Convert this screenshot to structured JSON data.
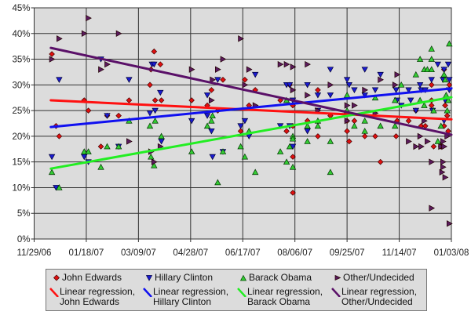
{
  "chart_data": {
    "type": "scatter",
    "title": "",
    "xlabel": "",
    "ylabel": "",
    "xlim": [
      "11/29/06",
      "01/03/08"
    ],
    "ylim": [
      0,
      45
    ],
    "x_ticks": [
      "11/29/06",
      "01/18/07",
      "03/09/07",
      "04/28/07",
      "06/17/07",
      "08/06/07",
      "09/25/07",
      "11/14/07",
      "01/03/08"
    ],
    "y_ticks": [
      "0%",
      "5%",
      "10%",
      "15%",
      "20%",
      "25%",
      "30%",
      "35%",
      "40%",
      "45%"
    ],
    "grid": true,
    "legend_position": "bottom",
    "series": [
      {
        "name": "John Edwards",
        "marker": "diamond",
        "color": "#e01010",
        "points": [
          [
            "12/16/06",
            36
          ],
          [
            "12/20/06",
            22
          ],
          [
            "12/23/06",
            20
          ],
          [
            "01/16/07",
            27
          ],
          [
            "01/20/07",
            25
          ],
          [
            "02/01/07",
            18
          ],
          [
            "02/07/07",
            24
          ],
          [
            "02/18/07",
            24
          ],
          [
            "02/28/07",
            27
          ],
          [
            "03/20/07",
            30
          ],
          [
            "03/21/07",
            33
          ],
          [
            "03/24/07",
            36.5
          ],
          [
            "03/25/07",
            27
          ],
          [
            "03/30/07",
            34
          ],
          [
            "03/31/07",
            27
          ],
          [
            "04/29/07",
            27
          ],
          [
            "05/14/07",
            26
          ],
          [
            "05/18/07",
            29
          ],
          [
            "05/24/07",
            25
          ],
          [
            "05/29/07",
            31
          ],
          [
            "06/15/07",
            21
          ],
          [
            "06/19/07",
            31
          ],
          [
            "06/23/07",
            26
          ],
          [
            "06/29/07",
            29
          ],
          [
            "07/23/07",
            27
          ],
          [
            "07/29/07",
            21
          ],
          [
            "08/01/07",
            30
          ],
          [
            "08/04/07",
            26
          ],
          [
            "08/04/07",
            22
          ],
          [
            "08/04/07",
            16
          ],
          [
            "08/04/07",
            9
          ],
          [
            "08/18/07",
            23
          ],
          [
            "08/28/07",
            29
          ],
          [
            "08/28/07",
            20
          ],
          [
            "09/09/07",
            24
          ],
          [
            "09/25/07",
            23
          ],
          [
            "09/25/07",
            21
          ],
          [
            "09/27/07",
            19
          ],
          [
            "10/02/07",
            23
          ],
          [
            "10/12/07",
            20
          ],
          [
            "10/22/07",
            20
          ],
          [
            "10/27/07",
            15
          ],
          [
            "11/11/07",
            20
          ],
          [
            "11/12/07",
            23
          ],
          [
            "11/23/07",
            23
          ],
          [
            "11/30/07",
            25
          ],
          [
            "12/05/07",
            22
          ],
          [
            "12/09/07",
            22
          ],
          [
            "12/15/07",
            27
          ],
          [
            "12/15/07",
            30
          ],
          [
            "12/15/07",
            26
          ],
          [
            "12/17/07",
            18
          ],
          [
            "12/24/07",
            18
          ],
          [
            "12/27/07",
            22
          ],
          [
            "12/28/07",
            26
          ],
          [
            "12/27/07",
            33
          ],
          [
            "01/01/08",
            30
          ],
          [
            "12/30/07",
            24
          ],
          [
            "12/31/07",
            21
          ]
        ]
      },
      {
        "name": "Hillary Clinton",
        "marker": "triangle-down",
        "color": "#1a1ad0",
        "points": [
          [
            "12/16/06",
            16
          ],
          [
            "12/20/06",
            10
          ],
          [
            "12/23/06",
            31
          ],
          [
            "01/16/07",
            16
          ],
          [
            "01/20/07",
            15
          ],
          [
            "02/01/07",
            35
          ],
          [
            "02/07/07",
            24
          ],
          [
            "02/18/07",
            18
          ],
          [
            "02/28/07",
            31
          ],
          [
            "03/20/07",
            24.5
          ],
          [
            "03/22/07",
            34
          ],
          [
            "03/24/07",
            34
          ],
          [
            "03/25/07",
            25
          ],
          [
            "03/30/07",
            28.5
          ],
          [
            "03/31/07",
            19
          ],
          [
            "04/29/07",
            23
          ],
          [
            "05/14/07",
            28
          ],
          [
            "05/14/07",
            24
          ],
          [
            "05/18/07",
            21
          ],
          [
            "05/19/07",
            16
          ],
          [
            "05/24/07",
            31
          ],
          [
            "05/29/07",
            17
          ],
          [
            "06/15/07",
            22
          ],
          [
            "06/19/07",
            23
          ],
          [
            "06/23/07",
            20
          ],
          [
            "06/29/07",
            32
          ],
          [
            "07/23/07",
            22
          ],
          [
            "07/29/07",
            30
          ],
          [
            "08/01/07",
            30
          ],
          [
            "08/01/07",
            22
          ],
          [
            "08/04/07",
            18
          ],
          [
            "08/04/07",
            27
          ],
          [
            "08/18/07",
            30
          ],
          [
            "08/18/07",
            21
          ],
          [
            "08/28/07",
            28
          ],
          [
            "08/28/07",
            25
          ],
          [
            "09/09/07",
            33
          ],
          [
            "09/09/07",
            28
          ],
          [
            "09/25/07",
            31
          ],
          [
            "09/27/07",
            30
          ],
          [
            "10/02/07",
            29
          ],
          [
            "10/12/07",
            33
          ],
          [
            "10/12/07",
            28
          ],
          [
            "10/22/07",
            29
          ],
          [
            "10/27/07",
            32
          ],
          [
            "11/11/07",
            29
          ],
          [
            "11/12/07",
            27
          ],
          [
            "11/16/07",
            26
          ],
          [
            "11/23/07",
            29
          ],
          [
            "11/25/07",
            27
          ],
          [
            "11/30/07",
            25
          ],
          [
            "12/04/07",
            30
          ],
          [
            "12/05/07",
            29
          ],
          [
            "12/09/07",
            29
          ],
          [
            "12/15/07",
            31
          ],
          [
            "12/16/07",
            25
          ],
          [
            "12/21/07",
            34
          ],
          [
            "12/26/07",
            31
          ],
          [
            "12/27/07",
            23
          ],
          [
            "12/27/07",
            33
          ],
          [
            "12/28/07",
            27
          ],
          [
            "12/31/07",
            34
          ],
          [
            "01/01/08",
            29
          ],
          [
            "01/01/08",
            31
          ]
        ]
      },
      {
        "name": "Barack Obama",
        "marker": "triangle-up",
        "color": "#33cc33",
        "points": [
          [
            "12/16/06",
            13
          ],
          [
            "12/23/06",
            10
          ],
          [
            "01/16/07",
            17
          ],
          [
            "01/20/07",
            17
          ],
          [
            "02/01/07",
            14
          ],
          [
            "02/07/07",
            18
          ],
          [
            "02/18/07",
            18
          ],
          [
            "02/28/07",
            23
          ],
          [
            "03/20/07",
            22
          ],
          [
            "03/21/07",
            16
          ],
          [
            "03/24/07",
            14.3
          ],
          [
            "03/25/07",
            23
          ],
          [
            "03/31/07",
            20
          ],
          [
            "04/29/07",
            17
          ],
          [
            "05/14/07",
            22
          ],
          [
            "05/18/07",
            23
          ],
          [
            "05/19/07",
            24
          ],
          [
            "05/24/07",
            11
          ],
          [
            "05/29/07",
            17
          ],
          [
            "06/15/07",
            18
          ],
          [
            "06/19/07",
            16
          ],
          [
            "06/23/07",
            21
          ],
          [
            "06/29/07",
            13
          ],
          [
            "07/23/07",
            17
          ],
          [
            "07/29/07",
            27
          ],
          [
            "07/29/07",
            15
          ],
          [
            "08/01/07",
            18
          ],
          [
            "08/04/07",
            20
          ],
          [
            "08/04/07",
            19.5
          ],
          [
            "08/04/07",
            14
          ],
          [
            "08/18/07",
            22
          ],
          [
            "08/18/07",
            19
          ],
          [
            "08/28/07",
            23
          ],
          [
            "08/28/07",
            22
          ],
          [
            "09/09/07",
            19
          ],
          [
            "09/09/07",
            13
          ],
          [
            "09/25/07",
            28
          ],
          [
            "09/25/07",
            25
          ],
          [
            "10/02/07",
            22
          ],
          [
            "10/12/07",
            23
          ],
          [
            "10/12/07",
            21
          ],
          [
            "10/22/07",
            27.5
          ],
          [
            "10/27/07",
            22
          ],
          [
            "11/10/07",
            27
          ],
          [
            "11/10/07",
            22
          ],
          [
            "11/16/07",
            30
          ],
          [
            "11/30/07",
            32
          ],
          [
            "12/04/07",
            27
          ],
          [
            "12/04/07",
            35
          ],
          [
            "12/08/07",
            26
          ],
          [
            "12/08/07",
            33
          ],
          [
            "12/11/07",
            33
          ],
          [
            "12/15/07",
            33
          ],
          [
            "12/15/07",
            37
          ],
          [
            "12/15/07",
            35
          ],
          [
            "12/17/07",
            25
          ],
          [
            "12/21/07",
            19
          ],
          [
            "12/24/07",
            22
          ],
          [
            "12/27/07",
            32
          ],
          [
            "12/28/07",
            31
          ],
          [
            "12/29/07",
            28
          ],
          [
            "12/30/07",
            25
          ],
          [
            "01/01/08",
            38
          ],
          [
            "12/31/07",
            27
          ]
        ]
      },
      {
        "name": "Other/Undecided",
        "marker": "triangle-right",
        "color": "#5a1a5e",
        "points": [
          [
            "12/16/06",
            35
          ],
          [
            "12/23/06",
            39
          ],
          [
            "01/16/07",
            40
          ],
          [
            "01/20/07",
            43
          ],
          [
            "02/01/07",
            33
          ],
          [
            "02/07/07",
            34
          ],
          [
            "02/18/07",
            40
          ],
          [
            "02/28/07",
            19
          ],
          [
            "03/21/07",
            17
          ],
          [
            "03/24/07",
            15
          ],
          [
            "03/30/07",
            18
          ],
          [
            "04/29/07",
            33
          ],
          [
            "05/18/07",
            27
          ],
          [
            "05/19/07",
            31
          ],
          [
            "05/24/07",
            33
          ],
          [
            "05/29/07",
            35
          ],
          [
            "06/15/07",
            39
          ],
          [
            "06/19/07",
            30
          ],
          [
            "06/23/07",
            33
          ],
          [
            "06/29/07",
            26
          ],
          [
            "07/23/07",
            34
          ],
          [
            "07/29/07",
            34
          ],
          [
            "08/04/07",
            33.5
          ],
          [
            "08/04/07",
            29
          ],
          [
            "08/18/07",
            34
          ],
          [
            "08/18/07",
            28
          ],
          [
            "08/28/07",
            25
          ],
          [
            "09/09/07",
            30
          ],
          [
            "09/25/07",
            26
          ],
          [
            "09/25/07",
            23
          ],
          [
            "10/02/07",
            26
          ],
          [
            "10/12/07",
            29
          ],
          [
            "10/22/07",
            24.5
          ],
          [
            "10/27/07",
            31
          ],
          [
            "11/10/07",
            30
          ],
          [
            "11/12/07",
            32
          ],
          [
            "11/23/07",
            19
          ],
          [
            "11/30/07",
            18
          ],
          [
            "12/04/07",
            20
          ],
          [
            "12/05/07",
            18
          ],
          [
            "12/08/07",
            23
          ],
          [
            "12/11/07",
            19
          ],
          [
            "12/15/07",
            15
          ],
          [
            "12/15/07",
            6
          ],
          [
            "12/24/07",
            18
          ],
          [
            "12/26/07",
            19
          ],
          [
            "12/27/07",
            18
          ],
          [
            "12/26/07",
            15
          ],
          [
            "12/26/07",
            14
          ],
          [
            "12/25/07",
            13
          ],
          [
            "12/28/07",
            12
          ],
          [
            "01/01/08",
            3
          ],
          [
            "12/30/07",
            20
          ]
        ]
      }
    ],
    "regressions": [
      {
        "name_line1": "Linear regression,",
        "name_line2": "John Edwards",
        "color": "#ff1010",
        "points": [
          [
            "12/15/06",
            27
          ],
          [
            "01/03/08",
            23.3
          ]
        ]
      },
      {
        "name_line1": "Linear regression,",
        "name_line2": "Hillary Clinton",
        "color": "#1010f0",
        "points": [
          [
            "12/15/06",
            21.8
          ],
          [
            "01/03/08",
            29.3
          ]
        ]
      },
      {
        "name_line1": "Linear regression,",
        "name_line2": "Barack Obama",
        "color": "#22ee22",
        "points": [
          [
            "12/15/06",
            13.7
          ],
          [
            "01/03/08",
            27.6
          ]
        ]
      },
      {
        "name_line1": "Linear regression,",
        "name_line2": "Other/Undecided",
        "color": "#5a1068",
        "points": [
          [
            "12/15/06",
            37.2
          ],
          [
            "01/03/08",
            20.3
          ]
        ]
      }
    ]
  }
}
